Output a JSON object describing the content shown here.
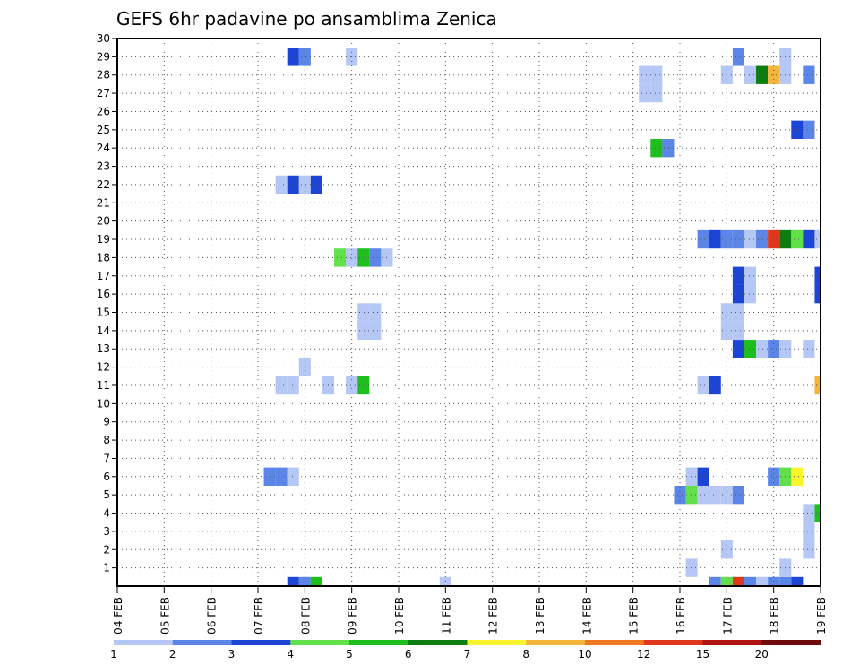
{
  "chart_data": {
    "type": "heatmap",
    "title": "GEFS 6hr padavine po ansamblima Zenica",
    "xlabel": "",
    "ylabel": "",
    "x_ticks": [
      "04 FEB",
      "05 FEB",
      "06 FEB",
      "07 FEB",
      "08 FEB",
      "09 FEB",
      "10 FEB",
      "11 FEB",
      "12 FEB",
      "13 FEB",
      "14 FEB",
      "15 FEB",
      "16 FEB",
      "17 FEB",
      "18 FEB",
      "19 FEB"
    ],
    "y_ticks": [
      "1",
      "2",
      "3",
      "4",
      "5",
      "6",
      "7",
      "8",
      "9",
      "10",
      "11",
      "12",
      "13",
      "14",
      "15",
      "16",
      "17",
      "18",
      "19",
      "20",
      "21",
      "22",
      "23",
      "24",
      "25",
      "26",
      "27",
      "28",
      "29",
      "30"
    ],
    "xlim": [
      0,
      60
    ],
    "ylim": [
      0,
      30
    ],
    "grid": true,
    "colorbar": {
      "labels": [
        "1",
        "2",
        "3",
        "4",
        "5",
        "6",
        "7",
        "8",
        "10",
        "12",
        "15",
        "20"
      ],
      "colors": [
        "#b4c7f5",
        "#5b86e8",
        "#1c45d6",
        "#62e04b",
        "#1fbe1f",
        "#0d7d10",
        "#f8f52e",
        "#f5b43c",
        "#f07820",
        "#e0381c",
        "#b11212",
        "#6e0c0c"
      ]
    },
    "cells": [
      {
        "x": 28,
        "y": 0,
        "v": 1
      },
      {
        "x": 15,
        "y": 0,
        "v": 3
      },
      {
        "x": 16,
        "y": 0,
        "v": 2
      },
      {
        "x": 17,
        "y": 0,
        "v": 5
      },
      {
        "x": 51,
        "y": 0,
        "v": 2
      },
      {
        "x": 52,
        "y": 0,
        "v": 4
      },
      {
        "x": 53,
        "y": 0,
        "v": 10
      },
      {
        "x": 54,
        "y": 0,
        "v": 2
      },
      {
        "x": 55,
        "y": 0,
        "v": 1
      },
      {
        "x": 56,
        "y": 0,
        "v": 2
      },
      {
        "x": 57,
        "y": 0,
        "v": 2
      },
      {
        "x": 58,
        "y": 0,
        "v": 3
      },
      {
        "x": 49,
        "y": 1,
        "v": 1
      },
      {
        "x": 57,
        "y": 1,
        "v": 1
      },
      {
        "x": 52,
        "y": 2,
        "v": 1
      },
      {
        "x": 59,
        "y": 2,
        "v": 1
      },
      {
        "x": 59,
        "y": 3,
        "v": 1
      },
      {
        "x": 59,
        "y": 4,
        "v": 1
      },
      {
        "x": 60,
        "y": 4,
        "v": 5
      },
      {
        "x": 48,
        "y": 5,
        "v": 2
      },
      {
        "x": 49,
        "y": 5,
        "v": 4
      },
      {
        "x": 50,
        "y": 5,
        "v": 1
      },
      {
        "x": 51,
        "y": 5,
        "v": 1
      },
      {
        "x": 52,
        "y": 5,
        "v": 1
      },
      {
        "x": 53,
        "y": 5,
        "v": 2
      },
      {
        "x": 13,
        "y": 6,
        "v": 2
      },
      {
        "x": 14,
        "y": 6,
        "v": 2
      },
      {
        "x": 15,
        "y": 6,
        "v": 1
      },
      {
        "x": 49,
        "y": 6,
        "v": 1
      },
      {
        "x": 50,
        "y": 6,
        "v": 3
      },
      {
        "x": 56,
        "y": 6,
        "v": 2
      },
      {
        "x": 57,
        "y": 6,
        "v": 4
      },
      {
        "x": 58,
        "y": 6,
        "v": 7
      },
      {
        "x": 14,
        "y": 11,
        "v": 1
      },
      {
        "x": 15,
        "y": 11,
        "v": 1
      },
      {
        "x": 18,
        "y": 11,
        "v": 1
      },
      {
        "x": 20,
        "y": 11,
        "v": 1
      },
      {
        "x": 21,
        "y": 11,
        "v": 5
      },
      {
        "x": 50,
        "y": 11,
        "v": 1
      },
      {
        "x": 51,
        "y": 11,
        "v": 3
      },
      {
        "x": 60,
        "y": 11,
        "v": 8
      },
      {
        "x": 16,
        "y": 12,
        "v": 1
      },
      {
        "x": 53,
        "y": 13,
        "v": 3
      },
      {
        "x": 54,
        "y": 13,
        "v": 5
      },
      {
        "x": 55,
        "y": 13,
        "v": 1
      },
      {
        "x": 56,
        "y": 13,
        "v": 2
      },
      {
        "x": 57,
        "y": 13,
        "v": 1
      },
      {
        "x": 59,
        "y": 13,
        "v": 1
      },
      {
        "x": 21,
        "y": 14,
        "v": 1
      },
      {
        "x": 22,
        "y": 14,
        "v": 1
      },
      {
        "x": 52,
        "y": 14,
        "v": 1
      },
      {
        "x": 53,
        "y": 14,
        "v": 1
      },
      {
        "x": 21,
        "y": 15,
        "v": 1
      },
      {
        "x": 22,
        "y": 15,
        "v": 1
      },
      {
        "x": 52,
        "y": 15,
        "v": 1
      },
      {
        "x": 53,
        "y": 15,
        "v": 1
      },
      {
        "x": 53,
        "y": 16,
        "v": 3
      },
      {
        "x": 54,
        "y": 16,
        "v": 1
      },
      {
        "x": 60,
        "y": 16,
        "v": 3
      },
      {
        "x": 53,
        "y": 17,
        "v": 3
      },
      {
        "x": 54,
        "y": 17,
        "v": 1
      },
      {
        "x": 60,
        "y": 17,
        "v": 3
      },
      {
        "x": 19,
        "y": 18,
        "v": 4
      },
      {
        "x": 20,
        "y": 18,
        "v": 1
      },
      {
        "x": 21,
        "y": 18,
        "v": 5
      },
      {
        "x": 22,
        "y": 18,
        "v": 2
      },
      {
        "x": 23,
        "y": 18,
        "v": 1
      },
      {
        "x": 50,
        "y": 19,
        "v": 2
      },
      {
        "x": 51,
        "y": 19,
        "v": 3
      },
      {
        "x": 52,
        "y": 19,
        "v": 2
      },
      {
        "x": 53,
        "y": 19,
        "v": 2
      },
      {
        "x": 54,
        "y": 19,
        "v": 1
      },
      {
        "x": 55,
        "y": 19,
        "v": 2
      },
      {
        "x": 56,
        "y": 19,
        "v": 10
      },
      {
        "x": 57,
        "y": 19,
        "v": 6
      },
      {
        "x": 58,
        "y": 19,
        "v": 4
      },
      {
        "x": 59,
        "y": 19,
        "v": 3
      },
      {
        "x": 60,
        "y": 19,
        "v": 1
      },
      {
        "x": 14,
        "y": 22,
        "v": 1
      },
      {
        "x": 15,
        "y": 22,
        "v": 3
      },
      {
        "x": 16,
        "y": 22,
        "v": 1
      },
      {
        "x": 17,
        "y": 22,
        "v": 3
      },
      {
        "x": 46,
        "y": 24,
        "v": 5
      },
      {
        "x": 47,
        "y": 24,
        "v": 2
      },
      {
        "x": 58,
        "y": 25,
        "v": 3
      },
      {
        "x": 59,
        "y": 25,
        "v": 2
      },
      {
        "x": 45,
        "y": 27,
        "v": 1
      },
      {
        "x": 46,
        "y": 27,
        "v": 1
      },
      {
        "x": 45,
        "y": 28,
        "v": 1
      },
      {
        "x": 46,
        "y": 28,
        "v": 1
      },
      {
        "x": 52,
        "y": 28,
        "v": 1
      },
      {
        "x": 54,
        "y": 28,
        "v": 1
      },
      {
        "x": 55,
        "y": 28,
        "v": 6
      },
      {
        "x": 56,
        "y": 28,
        "v": 8
      },
      {
        "x": 57,
        "y": 28,
        "v": 1
      },
      {
        "x": 59,
        "y": 28,
        "v": 2
      },
      {
        "x": 15,
        "y": 29,
        "v": 3
      },
      {
        "x": 16,
        "y": 29,
        "v": 2
      },
      {
        "x": 20,
        "y": 29,
        "v": 1
      },
      {
        "x": 53,
        "y": 29,
        "v": 2
      },
      {
        "x": 57,
        "y": 29,
        "v": 1
      }
    ]
  }
}
